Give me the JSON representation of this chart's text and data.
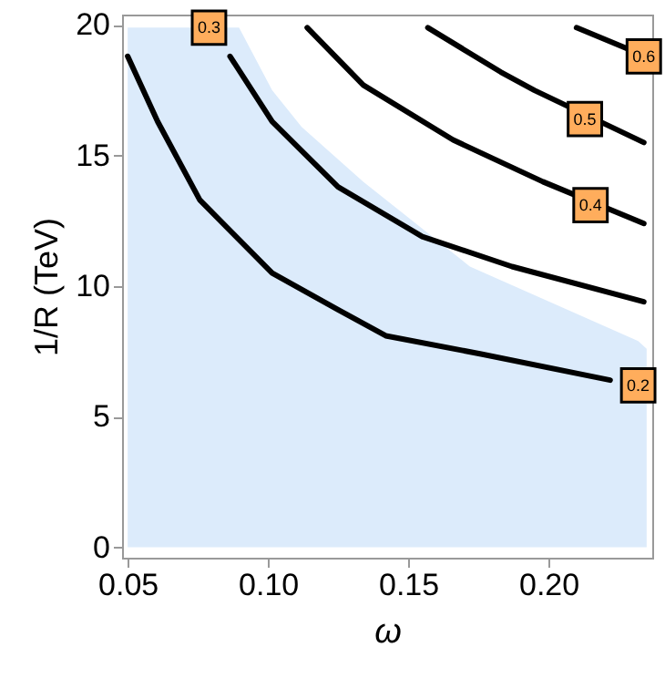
{
  "chart_data": {
    "type": "line",
    "xlabel": "ω",
    "ylabel": "1/R (TeV)",
    "xlim": [
      0.048,
      0.237
    ],
    "ylim": [
      -0.4,
      20.4
    ],
    "xticks": [
      0.05,
      {
        "value": 0.1,
        "label": "0.10"
      },
      0.15,
      {
        "value": 0.2,
        "label": "0.20"
      }
    ],
    "yticks": [
      0,
      5,
      10,
      15,
      20
    ],
    "series": [
      {
        "type": "area",
        "color": "#dcebfb",
        "x": [
          0.05,
          0.0897,
          0.1015,
          0.112,
          0.134,
          0.172,
          0.232,
          0.235
        ],
        "values": [
          19.9,
          19.9,
          17.5,
          16.1,
          14.0,
          10.75,
          7.9,
          7.6
        ]
      },
      {
        "color": "#000000",
        "x": [
          0.05,
          0.0607,
          0.0757,
          0.1015,
          0.125,
          0.142,
          0.176,
          0.222
        ],
        "values": [
          18.8,
          16.3,
          13.3,
          10.5,
          9.1,
          8.1,
          7.4,
          6.4
        ]
      },
      {
        "color": "#000000",
        "x": [
          0.0865,
          0.1015,
          0.125,
          0.155,
          0.187,
          0.234
        ],
        "values": [
          18.8,
          16.3,
          13.8,
          11.9,
          10.75,
          9.4
        ]
      },
      {
        "color": "#000000",
        "x": [
          0.114,
          0.134,
          0.166,
          0.198,
          0.234
        ],
        "values": [
          19.9,
          17.7,
          15.6,
          14.0,
          12.4
        ]
      },
      {
        "color": "#000000",
        "x": [
          0.157,
          0.183,
          0.195,
          0.234
        ],
        "values": [
          19.9,
          18.2,
          17.5,
          15.5
        ]
      },
      {
        "color": "#000000",
        "x": [
          0.21,
          0.228,
          0.234
        ],
        "values": [
          19.9,
          19.1,
          18.8
        ]
      }
    ],
    "annotations": [
      {
        "text": "0.2",
        "x": 0.232,
        "y": 6.2
      },
      {
        "text": "0.3",
        "x": 0.079,
        "y": 19.9
      },
      {
        "text": "0.4",
        "x": 0.215,
        "y": 13.1
      },
      {
        "text": "0.5",
        "x": 0.213,
        "y": 16.4
      },
      {
        "text": "0.6",
        "x": 0.234,
        "y": 18.8
      }
    ]
  }
}
